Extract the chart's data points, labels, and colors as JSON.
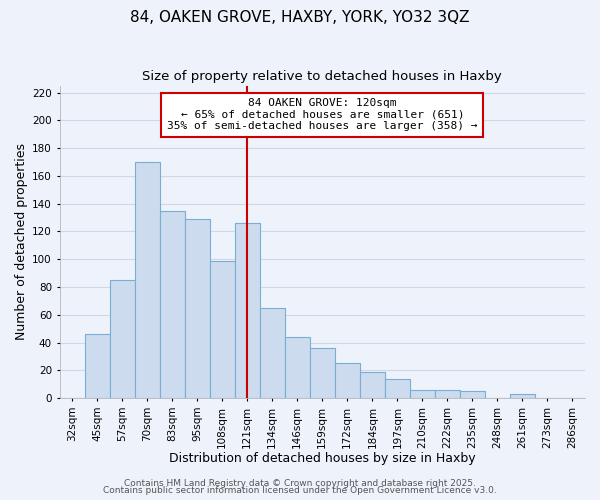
{
  "title": "84, OAKEN GROVE, HAXBY, YORK, YO32 3QZ",
  "subtitle": "Size of property relative to detached houses in Haxby",
  "xlabel": "Distribution of detached houses by size in Haxby",
  "ylabel": "Number of detached properties",
  "bar_color": "#ccdcee",
  "bar_edge_color": "#7aadd4",
  "categories": [
    "32sqm",
    "45sqm",
    "57sqm",
    "70sqm",
    "83sqm",
    "95sqm",
    "108sqm",
    "121sqm",
    "134sqm",
    "146sqm",
    "159sqm",
    "172sqm",
    "184sqm",
    "197sqm",
    "210sqm",
    "222sqm",
    "235sqm",
    "248sqm",
    "261sqm",
    "273sqm",
    "286sqm"
  ],
  "values": [
    0,
    46,
    85,
    170,
    135,
    129,
    99,
    126,
    65,
    44,
    36,
    25,
    19,
    14,
    6,
    6,
    5,
    0,
    3,
    0,
    0
  ],
  "ylim": [
    0,
    225
  ],
  "yticks": [
    0,
    20,
    40,
    60,
    80,
    100,
    120,
    140,
    160,
    180,
    200,
    220
  ],
  "vline_x_index": 7,
  "vline_color": "#cc0000",
  "annotation_title": "84 OAKEN GROVE: 120sqm",
  "annotation_line1": "← 65% of detached houses are smaller (651)",
  "annotation_line2": "35% of semi-detached houses are larger (358) →",
  "annotation_box_color": "#ffffff",
  "annotation_box_edge": "#cc0000",
  "footer1": "Contains HM Land Registry data © Crown copyright and database right 2025.",
  "footer2": "Contains public sector information licensed under the Open Government Licence v3.0.",
  "background_color": "#edf2fb",
  "grid_color": "#d0d8e8",
  "title_fontsize": 11,
  "subtitle_fontsize": 9.5,
  "axis_label_fontsize": 9,
  "tick_fontsize": 7.5,
  "annotation_fontsize": 8,
  "footer_fontsize": 6.5
}
